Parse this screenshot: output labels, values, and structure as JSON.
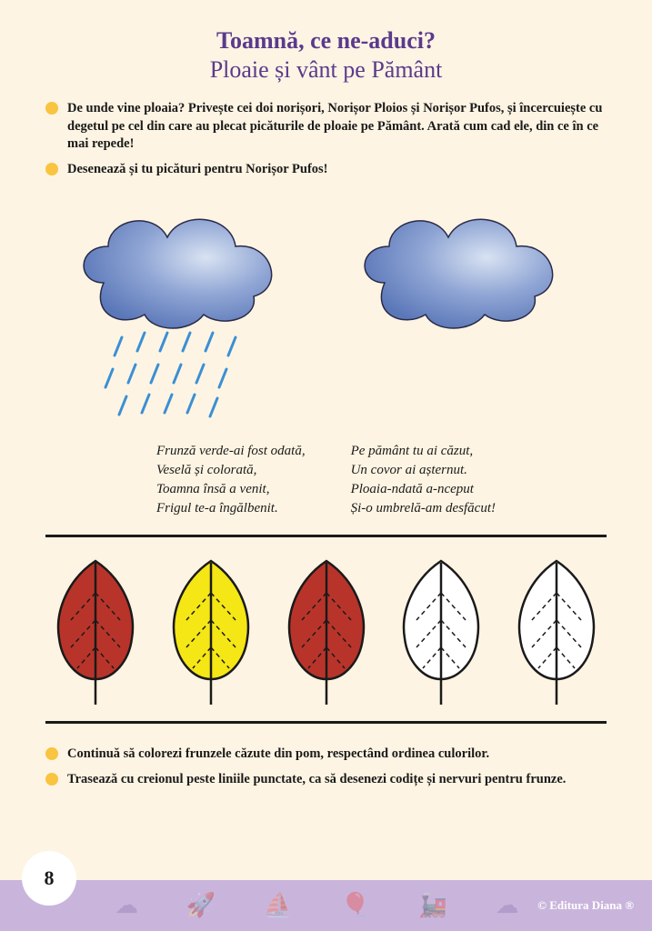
{
  "title_main": "Toamnă, ce ne-aduci?",
  "title_sub": "Ploaie și vânt pe Pământ",
  "title_color": "#5b3a8c",
  "bullet_color": "#f9c440",
  "instruction1": "De unde vine ploaia? Privește cei doi norișori, Norișor Ploios și Norișor Pufos, și încercuiește cu degetul pe cel din care au plecat picăturile de ploaie pe Pământ. Arată cum cad ele, din ce în ce mai repede!",
  "instruction2": "Desenează și tu picături pentru Norișor Pufos!",
  "instruction3": "Continuă să colorezi frunzele căzute din pom, respectând ordinea culorilor.",
  "instruction4": "Trasează cu creionul peste liniile punctate, ca să desenezi codițe și nervuri pentru frunze.",
  "cloud": {
    "fill_light": "#c9d6ed",
    "fill_dark": "#5a77b8",
    "stroke": "#2a2a4a",
    "rain_color": "#3a8fd4"
  },
  "poem": {
    "left": [
      "Frunză verde-ai fost odată,",
      "Veselă și colorată,",
      "Toamna însă a venit,",
      "Frigul te-a îngălbenit."
    ],
    "right": [
      "Pe pământ tu ai căzut,",
      "Un covor ai așternut.",
      "Ploaia-ndată a-nceput",
      "Și-o umbrelă-am desfăcut!"
    ]
  },
  "leaves": [
    {
      "fill": "#b8342a"
    },
    {
      "fill": "#f5e615"
    },
    {
      "fill": "#b8342a"
    },
    {
      "fill": "#ffffff"
    },
    {
      "fill": "#ffffff"
    }
  ],
  "leaf_stroke": "#1a1a1a",
  "page_number": "8",
  "copyright": "© Editura Diana ®",
  "footer_bg": "#c9b5dc"
}
